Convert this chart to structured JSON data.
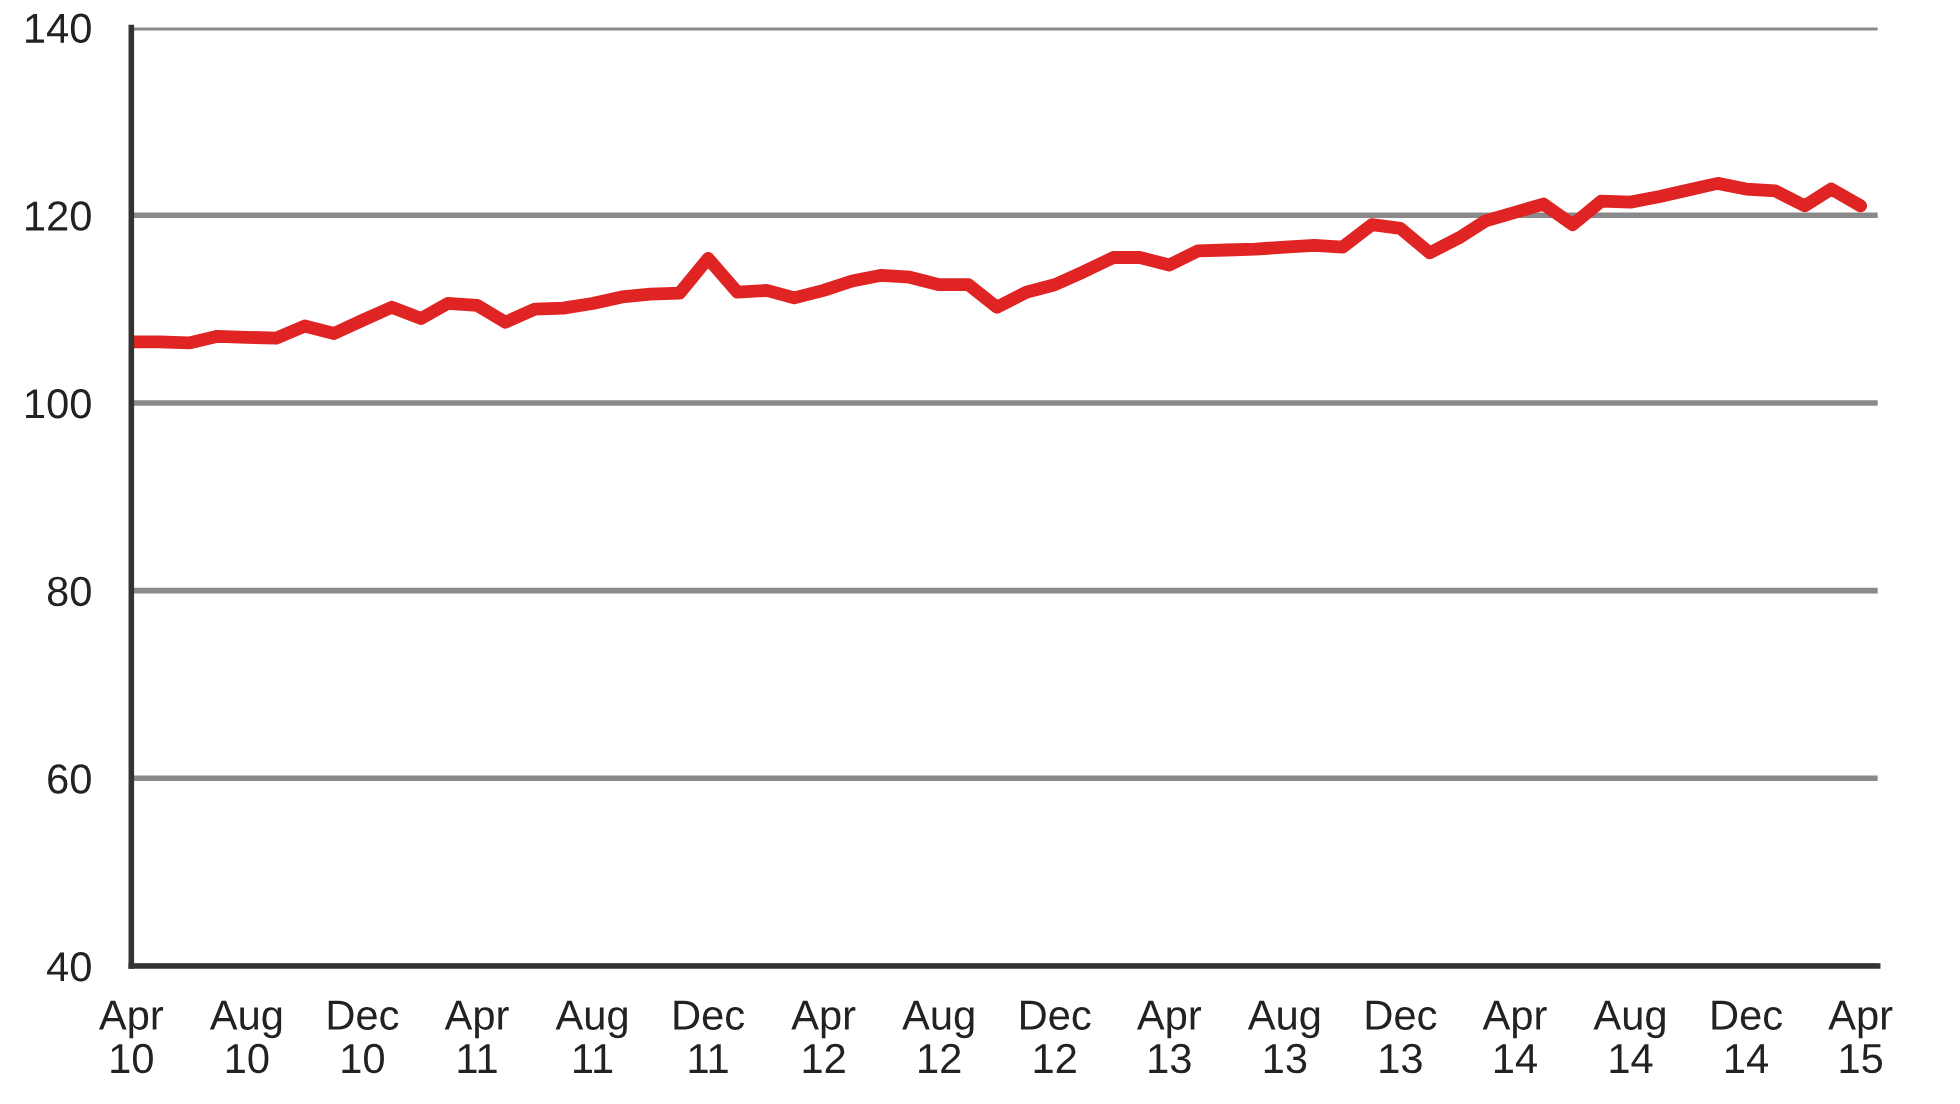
{
  "chart_data": {
    "type": "line",
    "x": [
      "2010-04",
      "2010-05",
      "2010-06",
      "2010-07",
      "2010-08",
      "2010-09",
      "2010-10",
      "2010-11",
      "2010-12",
      "2011-01",
      "2011-02",
      "2011-03",
      "2011-04",
      "2011-05",
      "2011-06",
      "2011-07",
      "2011-08",
      "2011-09",
      "2011-10",
      "2011-11",
      "2011-12",
      "2012-01",
      "2012-02",
      "2012-03",
      "2012-04",
      "2012-05",
      "2012-06",
      "2012-07",
      "2012-08",
      "2012-09",
      "2012-10",
      "2012-11",
      "2012-12",
      "2013-01",
      "2013-02",
      "2013-03",
      "2013-04",
      "2013-05",
      "2013-06",
      "2013-07",
      "2013-08",
      "2013-09",
      "2013-10",
      "2013-11",
      "2013-12",
      "2014-01",
      "2014-02",
      "2014-03",
      "2014-04",
      "2014-05",
      "2014-06",
      "2014-07",
      "2014-08",
      "2014-09",
      "2014-10",
      "2014-11",
      "2014-12",
      "2015-01",
      "2015-02",
      "2015-03",
      "2015-04"
    ],
    "series": [
      {
        "color": "#e02424",
        "values": [
          106.5,
          106.5,
          106.4,
          107.1,
          107.0,
          106.9,
          108.2,
          107.4,
          108.8,
          110.2,
          109.0,
          110.6,
          110.4,
          108.6,
          110.0,
          110.1,
          110.6,
          111.3,
          111.6,
          111.7,
          115.4,
          111.8,
          112.0,
          111.2,
          112.0,
          113.0,
          113.6,
          113.4,
          112.6,
          112.6,
          110.2,
          111.8,
          112.6,
          114.0,
          115.5,
          115.5,
          114.7,
          116.2,
          116.3,
          116.4,
          116.6,
          116.8,
          116.6,
          119.0,
          118.6,
          116.0,
          117.6,
          119.4,
          120.3,
          121.2,
          119.0,
          121.5,
          121.4,
          122.0,
          122.7,
          123.4,
          122.8,
          122.6,
          121.0,
          122.8,
          121.0
        ]
      }
    ],
    "xlim": [
      "2010-04",
      "2015-04-19"
    ],
    "xticks": [
      {
        "value": "2010-04",
        "label": "Apr\n10"
      },
      {
        "value": "2010-08",
        "label": "Aug\n10"
      },
      {
        "value": "2010-12",
        "label": "Dec\n10"
      },
      {
        "value": "2011-04",
        "label": "Apr\n11"
      },
      {
        "value": "2011-08",
        "label": "Aug\n11"
      },
      {
        "value": "2011-12",
        "label": "Dec\n11"
      },
      {
        "value": "2012-04",
        "label": "Apr\n12"
      },
      {
        "value": "2012-08",
        "label": "Aug\n12"
      },
      {
        "value": "2012-12",
        "label": "Dec\n12"
      },
      {
        "value": "2013-04",
        "label": "Apr\n13"
      },
      {
        "value": "2013-08",
        "label": "Aug\n13"
      },
      {
        "value": "2013-12",
        "label": "Dec\n13"
      },
      {
        "value": "2014-04",
        "label": "Apr\n14"
      },
      {
        "value": "2014-08",
        "label": "Aug\n14"
      },
      {
        "value": "2014-12",
        "label": "Dec\n14"
      },
      {
        "value": "2015-04",
        "label": "Apr\n15"
      }
    ],
    "ylim": [
      40,
      140
    ],
    "yticks": [
      40,
      60,
      80,
      100,
      120,
      140
    ],
    "grid": "y",
    "line_style": "solid"
  }
}
